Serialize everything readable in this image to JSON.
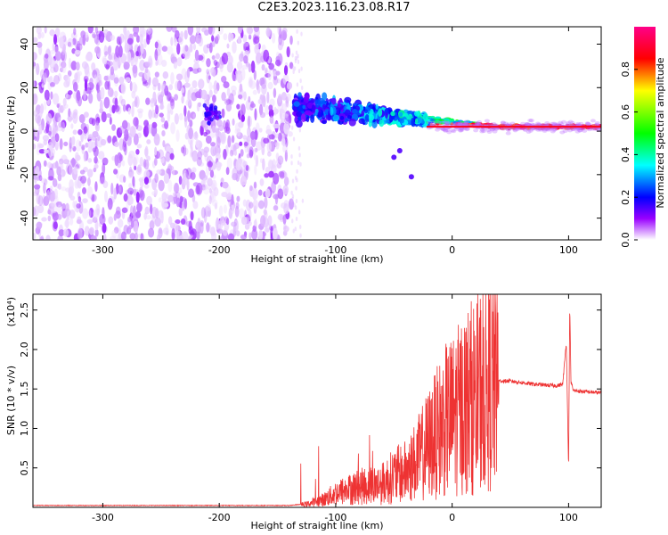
{
  "title": "C2E3.2023.116.23.08.R17",
  "chart_data": [
    {
      "type": "heatmap",
      "xlabel": "Height of straight line (km)",
      "ylabel": "Frequency (Hz)",
      "xlim": [
        -360,
        128
      ],
      "ylim": [
        -50,
        48
      ],
      "xticks": [
        -300,
        -200,
        -100,
        0,
        100
      ],
      "xtick_labels": [
        "-300",
        "-200",
        "-100",
        "0",
        "100"
      ],
      "yticks": [
        -40,
        -20,
        0,
        20,
        40
      ],
      "ytick_labels": [
        "-40",
        "-20",
        "0",
        "20",
        "40"
      ],
      "colorbar": {
        "label": "Normalized spectral amplitude",
        "range": [
          0.0,
          1.0
        ],
        "ticks": [
          0.0,
          0.2,
          0.4,
          0.6,
          0.8
        ],
        "tick_labels": [
          "0.0",
          "0.2",
          "0.4",
          "0.6",
          "0.8"
        ],
        "colors": [
          "#ffffff",
          "#8800ff",
          "#0000ff",
          "#00ffff",
          "#00ff00",
          "#ffff00",
          "#ff0000",
          "#ff0088"
        ]
      },
      "regions": {
        "noise_x_range": [
          -360,
          -138
        ],
        "noise_freq_range": [
          -50,
          48
        ],
        "signal_onset_km": -135,
        "carrier_freq_hz": 2
      }
    },
    {
      "type": "line",
      "xlabel": "Height of straight line (km)",
      "ylabel": "SNR (10 * v/v)",
      "multiplier_label": "(x10⁴)",
      "xlim": [
        -360,
        128
      ],
      "ylim": [
        0,
        2.7
      ],
      "xticks": [
        -300,
        -200,
        -100,
        0,
        100
      ],
      "xtick_labels": [
        "-300",
        "-200",
        "-100",
        "0",
        "100"
      ],
      "yticks": [
        0.5,
        1.0,
        1.5,
        2.0,
        2.5
      ],
      "ytick_labels": [
        "0.5",
        "1.0",
        "1.5",
        "2.0",
        "2.5"
      ],
      "line_color": "#ee3333",
      "series": [
        {
          "name": "SNR",
          "x": [
            -360,
            -300,
            -200,
            -140,
            -125,
            -110,
            -100,
            -90,
            -80,
            -70,
            -60,
            -50,
            -40,
            -30,
            -25,
            -20,
            -15,
            -10,
            -5,
            0,
            10,
            20,
            30,
            40,
            50,
            60,
            70,
            80,
            90,
            95,
            98,
            100,
            101,
            102,
            104,
            110,
            120,
            128
          ],
          "y": [
            0.02,
            0.02,
            0.02,
            0.02,
            0.04,
            0.1,
            0.18,
            0.22,
            0.26,
            0.28,
            0.3,
            0.4,
            0.45,
            0.6,
            0.7,
            0.8,
            0.9,
            1.0,
            1.1,
            1.15,
            1.3,
            1.45,
            1.52,
            1.6,
            1.6,
            1.58,
            1.56,
            1.55,
            1.54,
            1.56,
            2.1,
            0.5,
            2.6,
            1.6,
            1.48,
            1.47,
            1.46,
            1.45
          ]
        }
      ]
    }
  ]
}
